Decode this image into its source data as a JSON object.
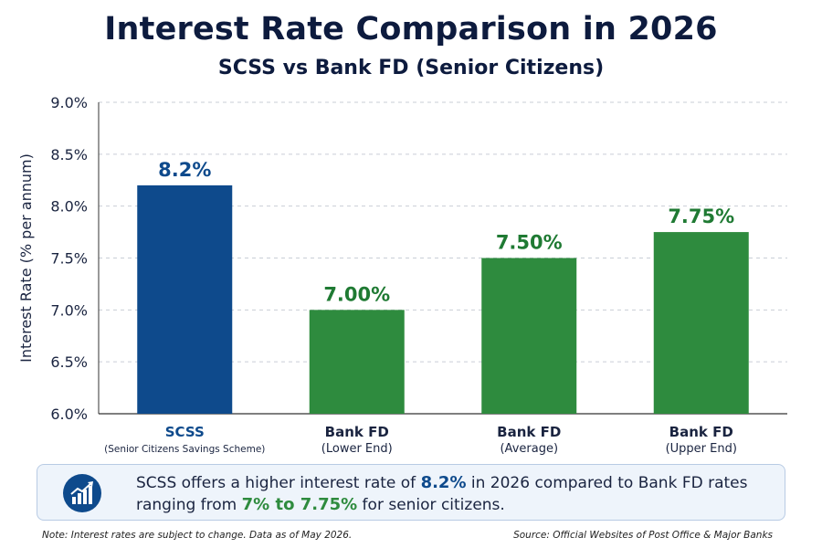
{
  "chart_data": {
    "type": "bar",
    "title": "Interest Rate Comparison in 2026",
    "subtitle": "SCSS vs Bank FD (Senior Citizens)",
    "ylabel": "Interest Rate (% per annum)",
    "ylim": [
      6.0,
      9.0
    ],
    "yticks": [
      "6.0%",
      "6.5%",
      "7.0%",
      "7.5%",
      "8.0%",
      "8.5%",
      "9.0%"
    ],
    "ytick_values": [
      6.0,
      6.5,
      7.0,
      7.5,
      8.0,
      8.5,
      9.0
    ],
    "grid": true,
    "categories": [
      {
        "name": "SCSS",
        "sub": "(Senior Citizens Savings Scheme)"
      },
      {
        "name": "Bank FD",
        "sub": "(Lower End)"
      },
      {
        "name": "Bank FD",
        "sub": "(Average)"
      },
      {
        "name": "Bank FD",
        "sub": "(Upper End)"
      }
    ],
    "values": [
      8.2,
      7.0,
      7.5,
      7.75
    ],
    "value_labels": [
      "8.2%",
      "7.00%",
      "7.50%",
      "7.75%"
    ],
    "colors": [
      "#0e4a8c",
      "#2e8b3e",
      "#2e8b3e",
      "#2e8b3e"
    ],
    "label_colors": [
      "#0e4a8c",
      "#1f7a33",
      "#1f7a33",
      "#1f7a33"
    ],
    "category_colors": [
      "#0e4a8c",
      "#1a2440",
      "#1a2440",
      "#1a2440"
    ]
  },
  "callout": {
    "icon": "bar-chart-growth-icon",
    "text_1": "SCSS offers a higher interest rate of ",
    "highlight_1": "8.2%",
    "text_2": " in 2026 compared to Bank FD rates",
    "text_3": "ranging from ",
    "highlight_2": "7% to 7.75%",
    "text_4": " for senior citizens."
  },
  "footer": {
    "note": "Note: Interest rates are subject to change. Data as of May 2026.",
    "source": "Source: Official Websites of Post Office & Major Banks"
  }
}
